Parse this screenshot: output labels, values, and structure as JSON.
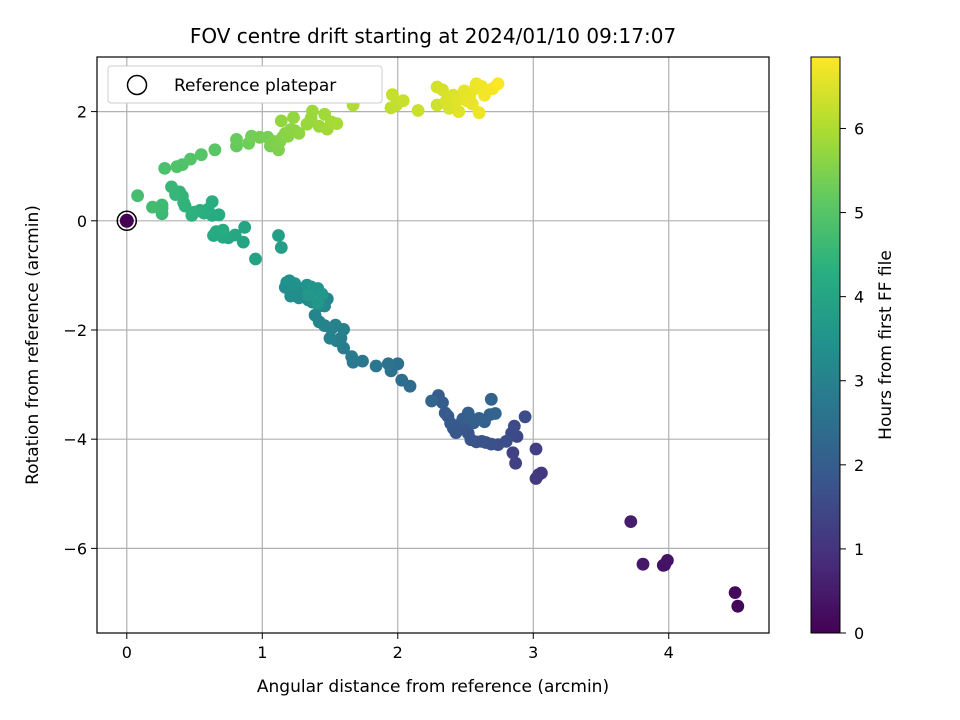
{
  "chart_data": {
    "type": "scatter",
    "title": "FOV centre drift starting at 2024/01/10 09:17:07",
    "xlabel": "Angular distance from reference (arcmin)",
    "ylabel": "Rotation from reference (arcmin)",
    "xlim": [
      -0.22,
      4.74
    ],
    "ylim": [
      -7.55,
      3.0
    ],
    "xticks": [
      0,
      1,
      2,
      3,
      4
    ],
    "yticks": [
      -6,
      -4,
      -2,
      0,
      2
    ],
    "xtick_labels": [
      "0",
      "1",
      "2",
      "3",
      "4"
    ],
    "ytick_labels": [
      "−6",
      "−4",
      "−2",
      "0",
      "2"
    ],
    "grid": true,
    "colormap": "viridis",
    "colorbar": {
      "label": "Hours from first FF file",
      "range": [
        0,
        6.85
      ],
      "ticks": [
        0,
        1,
        2,
        3,
        4,
        5,
        6
      ],
      "tick_labels": [
        "0",
        "1",
        "2",
        "3",
        "4",
        "5",
        "6"
      ]
    },
    "legend": {
      "position": "top-left",
      "entries": [
        "Reference platepar"
      ]
    },
    "reference_point": {
      "x": 0.0,
      "y": 0.0,
      "label": "Reference platepar",
      "hours": 0.0
    },
    "series": [
      {
        "points": [
          [
            4.51,
            -7.06,
            0.1
          ],
          [
            4.49,
            -6.81,
            0.15
          ],
          [
            3.97,
            -6.3,
            0.3
          ],
          [
            3.96,
            -6.31,
            0.32
          ],
          [
            3.99,
            -6.22,
            0.35
          ],
          [
            3.81,
            -6.29,
            0.45
          ],
          [
            3.72,
            -5.51,
            0.55
          ],
          [
            3.06,
            -4.62,
            1.1
          ],
          [
            3.04,
            -4.65,
            1.12
          ],
          [
            3.02,
            -4.72,
            1.15
          ],
          [
            3.02,
            -4.18,
            1.25
          ],
          [
            2.87,
            -4.44,
            1.3
          ],
          [
            2.85,
            -4.25,
            1.35
          ],
          [
            2.88,
            -3.95,
            1.45
          ],
          [
            2.84,
            -3.89,
            1.5
          ],
          [
            2.86,
            -3.76,
            1.55
          ],
          [
            2.94,
            -3.59,
            1.6
          ],
          [
            2.8,
            -4.04,
            1.62
          ],
          [
            2.74,
            -4.1,
            1.65
          ],
          [
            2.69,
            -4.09,
            1.68
          ],
          [
            2.65,
            -4.06,
            1.7
          ],
          [
            2.62,
            -4.04,
            1.72
          ],
          [
            2.58,
            -4.05,
            1.75
          ],
          [
            2.54,
            -4.01,
            1.78
          ],
          [
            2.52,
            -3.89,
            1.8
          ],
          [
            2.49,
            -3.77,
            1.82
          ],
          [
            2.46,
            -3.73,
            1.85
          ],
          [
            2.43,
            -3.88,
            1.87
          ],
          [
            2.41,
            -3.8,
            1.88
          ],
          [
            2.39,
            -3.71,
            1.9
          ],
          [
            2.37,
            -3.58,
            1.92
          ],
          [
            2.35,
            -3.52,
            1.95
          ],
          [
            2.33,
            -3.33,
            1.97
          ],
          [
            2.3,
            -3.2,
            2.0
          ],
          [
            2.48,
            -3.63,
            2.02
          ],
          [
            2.52,
            -3.52,
            2.05
          ],
          [
            2.56,
            -3.7,
            2.07
          ],
          [
            2.6,
            -3.62,
            2.1
          ],
          [
            2.64,
            -3.68,
            2.12
          ],
          [
            2.68,
            -3.55,
            2.15
          ],
          [
            2.69,
            -3.27,
            2.17
          ],
          [
            2.72,
            -3.53,
            2.2
          ],
          [
            2.25,
            -3.3,
            2.25
          ],
          [
            2.09,
            -3.03,
            2.4
          ],
          [
            2.03,
            -2.92,
            2.45
          ],
          [
            2.0,
            -2.62,
            2.5
          ],
          [
            1.95,
            -2.75,
            2.55
          ],
          [
            1.93,
            -2.62,
            2.6
          ],
          [
            1.84,
            -2.66,
            2.65
          ],
          [
            1.74,
            -2.57,
            2.7
          ],
          [
            1.67,
            -2.59,
            2.75
          ],
          [
            1.66,
            -2.49,
            2.8
          ],
          [
            1.6,
            -2.33,
            2.85
          ],
          [
            1.55,
            -2.2,
            2.9
          ],
          [
            1.58,
            -2.15,
            2.92
          ],
          [
            1.6,
            -1.99,
            2.95
          ],
          [
            1.54,
            -1.91,
            2.98
          ],
          [
            1.5,
            -2.15,
            3.0
          ],
          [
            1.51,
            -1.98,
            3.02
          ],
          [
            1.46,
            -1.92,
            3.05
          ],
          [
            1.42,
            -1.85,
            3.08
          ],
          [
            1.39,
            -1.73,
            3.1
          ],
          [
            1.48,
            -1.43,
            3.12
          ],
          [
            1.44,
            -1.42,
            3.15
          ],
          [
            1.46,
            -1.56,
            3.18
          ],
          [
            1.42,
            -1.56,
            3.2
          ],
          [
            1.37,
            -1.49,
            3.22
          ],
          [
            1.34,
            -1.45,
            3.25
          ],
          [
            1.3,
            -1.3,
            3.28
          ],
          [
            1.27,
            -1.41,
            3.3
          ],
          [
            1.24,
            -1.25,
            3.32
          ],
          [
            1.21,
            -1.38,
            3.35
          ],
          [
            1.17,
            -1.22,
            3.38
          ],
          [
            1.18,
            -1.13,
            3.4
          ],
          [
            1.2,
            -1.1,
            3.42
          ],
          [
            1.24,
            -1.15,
            3.45
          ],
          [
            1.33,
            -1.18,
            3.48
          ],
          [
            1.36,
            -1.21,
            3.5
          ],
          [
            1.38,
            -1.27,
            3.52
          ],
          [
            1.41,
            -1.24,
            3.55
          ],
          [
            1.44,
            -1.34,
            3.58
          ],
          [
            1.34,
            -1.36,
            3.6
          ],
          [
            1.41,
            -1.5,
            3.62
          ],
          [
            1.14,
            -0.49,
            3.8
          ],
          [
            1.12,
            -0.27,
            3.85
          ],
          [
            0.95,
            -0.7,
            3.9
          ],
          [
            0.86,
            -0.39,
            3.95
          ],
          [
            0.87,
            -0.12,
            4.0
          ],
          [
            0.8,
            -0.26,
            4.05
          ],
          [
            0.75,
            -0.31,
            4.08
          ],
          [
            0.71,
            -0.3,
            4.1
          ],
          [
            0.66,
            -0.2,
            4.12
          ],
          [
            0.64,
            -0.27,
            4.15
          ],
          [
            0.71,
            -0.17,
            4.18
          ],
          [
            0.68,
            0.11,
            4.2
          ],
          [
            0.63,
            0.1,
            4.22
          ],
          [
            0.6,
            0.21,
            4.25
          ],
          [
            0.63,
            0.35,
            4.28
          ],
          [
            0.57,
            0.14,
            4.3
          ],
          [
            0.54,
            0.19,
            4.32
          ],
          [
            0.5,
            0.16,
            4.35
          ],
          [
            0.48,
            0.1,
            4.38
          ],
          [
            0.43,
            0.27,
            4.4
          ],
          [
            0.42,
            0.33,
            4.42
          ],
          [
            0.41,
            0.45,
            4.45
          ],
          [
            0.39,
            0.53,
            4.48
          ],
          [
            0.36,
            0.48,
            4.5
          ],
          [
            0.33,
            0.62,
            4.55
          ],
          [
            0.26,
            0.13,
            4.6
          ],
          [
            0.26,
            0.23,
            4.62
          ],
          [
            0.26,
            0.29,
            4.65
          ],
          [
            0.19,
            0.25,
            4.7
          ],
          [
            0.08,
            0.46,
            4.75
          ],
          [
            0.28,
            0.96,
            4.85
          ],
          [
            0.37,
            0.99,
            4.9
          ],
          [
            0.41,
            1.03,
            4.92
          ],
          [
            0.47,
            1.13,
            4.95
          ],
          [
            0.55,
            1.21,
            5.0
          ],
          [
            0.65,
            1.3,
            5.05
          ],
          [
            0.81,
            1.37,
            5.2
          ],
          [
            0.81,
            1.49,
            5.25
          ],
          [
            0.9,
            1.42,
            5.3
          ],
          [
            0.92,
            1.55,
            5.35
          ],
          [
            0.98,
            1.53,
            5.38
          ],
          [
            1.04,
            1.53,
            5.4
          ],
          [
            1.06,
            1.37,
            5.42
          ],
          [
            1.07,
            1.46,
            5.45
          ],
          [
            1.1,
            1.45,
            5.48
          ],
          [
            1.12,
            1.3,
            5.5
          ],
          [
            1.13,
            1.45,
            5.52
          ],
          [
            1.15,
            1.53,
            5.55
          ],
          [
            1.17,
            1.6,
            5.58
          ],
          [
            1.19,
            1.55,
            5.6
          ],
          [
            1.21,
            1.67,
            5.62
          ],
          [
            1.24,
            1.65,
            5.65
          ],
          [
            1.27,
            1.6,
            5.68
          ],
          [
            1.14,
            1.83,
            5.7
          ],
          [
            1.23,
            1.89,
            5.72
          ],
          [
            1.33,
            1.77,
            5.75
          ],
          [
            1.36,
            1.88,
            5.78
          ],
          [
            1.37,
            2.01,
            5.8
          ],
          [
            1.42,
            1.73,
            5.82
          ],
          [
            1.46,
            1.95,
            5.85
          ],
          [
            1.48,
            1.68,
            5.88
          ],
          [
            1.51,
            1.81,
            5.9
          ],
          [
            1.55,
            1.78,
            5.92
          ],
          [
            1.67,
            2.12,
            6.0
          ],
          [
            1.95,
            2.07,
            6.2
          ],
          [
            1.99,
            2.12,
            6.22
          ],
          [
            1.96,
            2.31,
            6.25
          ],
          [
            2.04,
            2.2,
            6.28
          ],
          [
            2.15,
            2.02,
            6.3
          ],
          [
            2.29,
            2.12,
            6.35
          ],
          [
            2.29,
            2.45,
            6.4
          ],
          [
            2.33,
            2.4,
            6.42
          ],
          [
            2.36,
            2.21,
            6.45
          ],
          [
            2.38,
            2.06,
            6.47
          ],
          [
            2.41,
            2.3,
            6.5
          ],
          [
            2.43,
            2.18,
            6.52
          ],
          [
            2.45,
            2.0,
            6.54
          ],
          [
            2.47,
            2.24,
            6.56
          ],
          [
            2.49,
            2.38,
            6.58
          ],
          [
            2.51,
            2.2,
            6.6
          ],
          [
            2.53,
            2.28,
            6.62
          ],
          [
            2.55,
            2.14,
            6.64
          ],
          [
            2.57,
            2.42,
            6.66
          ],
          [
            2.58,
            2.51,
            6.68
          ],
          [
            2.6,
            1.98,
            6.7
          ],
          [
            2.62,
            2.46,
            6.72
          ],
          [
            2.64,
            2.3,
            6.74
          ],
          [
            2.7,
            2.42,
            6.78
          ],
          [
            2.74,
            2.51,
            6.82
          ]
        ]
      }
    ]
  }
}
